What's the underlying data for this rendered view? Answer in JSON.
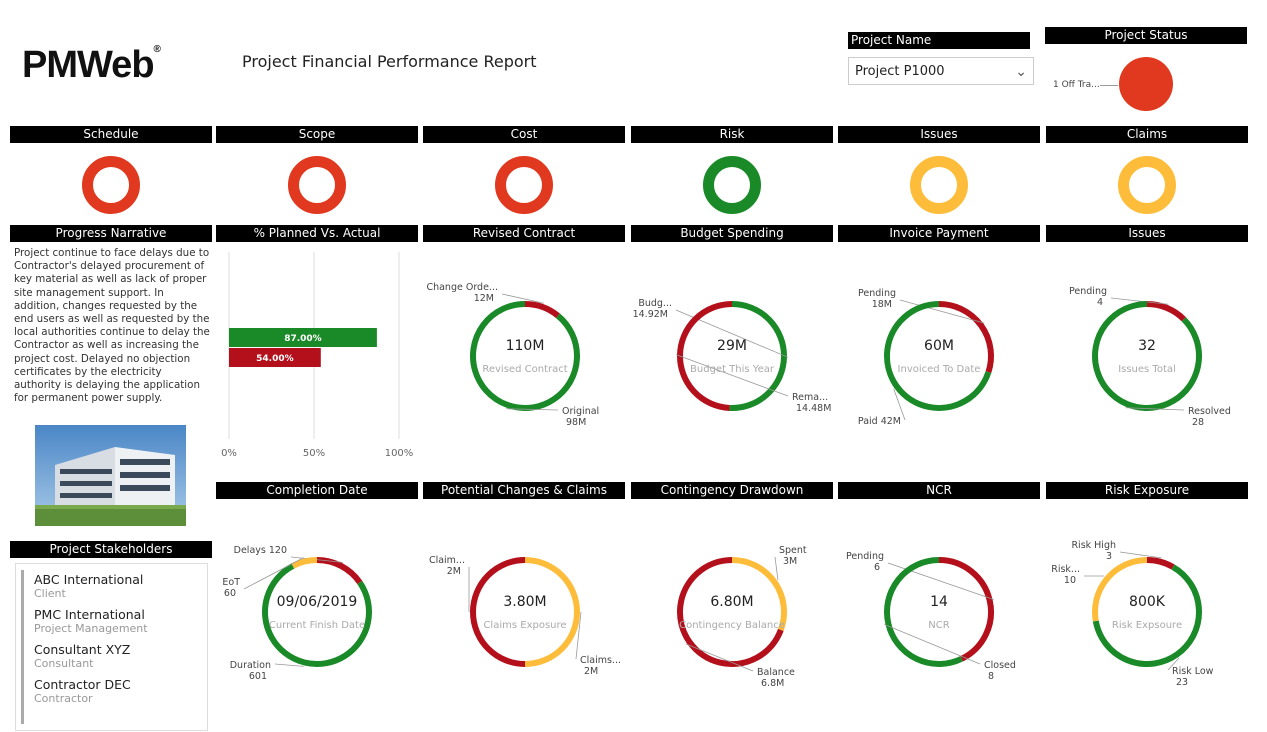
{
  "header": {
    "logo_text": "PMWeb",
    "logo_reg": "®",
    "title": "Project Financial Performance Report",
    "project_name_label": "Project Name",
    "project_name_value": "Project P1000",
    "project_status_label": "Project Status",
    "project_status_item": "1 Off Tra..."
  },
  "colors": {
    "red": "#e0391f",
    "darkred": "#b3101c",
    "green": "#1a8a28",
    "yellow": "#fdbd3b"
  },
  "indicators": [
    {
      "label": "Schedule",
      "status": "red"
    },
    {
      "label": "Scope",
      "status": "red"
    },
    {
      "label": "Cost",
      "status": "red"
    },
    {
      "label": "Risk",
      "status": "green"
    },
    {
      "label": "Issues",
      "status": "yellow"
    },
    {
      "label": "Claims",
      "status": "yellow"
    }
  ],
  "narrative": {
    "label": "Progress Narrative",
    "text": "Project continue to face delays due to Contractor's delayed procurement of key material as well as lack of proper site management support. In addition, changes requested by the end users as well as requested by the local authorities continue to delay the Contractor as well as increasing the project cost. Delayed no objection certificates by the electricity authority is delaying the application for permanent power supply."
  },
  "stakeholders": {
    "label": "Project Stakeholders",
    "items": [
      {
        "name": "ABC International",
        "role": "Client"
      },
      {
        "name": "PMC International",
        "role": "Project Management"
      },
      {
        "name": "Consultant XYZ",
        "role": "Consultant"
      },
      {
        "name": "Contractor DEC",
        "role": "Contractor"
      }
    ]
  },
  "chart_data": [
    {
      "type": "bar",
      "title": "% Planned Vs. Actual",
      "orientation": "horizontal",
      "series": [
        {
          "values": [
            87.0
          ],
          "label": "87.00%",
          "color": "#1a8a28"
        },
        {
          "values": [
            54.0
          ],
          "label": "54.00%",
          "color": "#b3101c"
        }
      ],
      "xlim": [
        0,
        100
      ],
      "xticks": [
        "0%",
        "50%",
        "100%"
      ]
    },
    {
      "type": "pie",
      "variant": "donut",
      "title": "Revised Contract",
      "center_value": "110M",
      "center_label": "Revised Contract",
      "slices": [
        {
          "label": "Change Orde...",
          "value_label": "12M",
          "value": 12,
          "color": "#b3101c"
        },
        {
          "label": "Original",
          "value_label": "98M",
          "value": 98,
          "color": "#1a8a28"
        }
      ]
    },
    {
      "type": "pie",
      "variant": "donut",
      "title": "Budget Spending",
      "center_value": "29M",
      "center_label": "Budget This Year",
      "slices": [
        {
          "label": "Budg...",
          "value_label": "14.92M",
          "value": 14.92,
          "color": "#1a8a28"
        },
        {
          "label": "Rema...",
          "value_label": "14.48M",
          "value": 14.48,
          "color": "#b3101c"
        }
      ]
    },
    {
      "type": "pie",
      "variant": "donut",
      "title": "Invoice Payment",
      "center_value": "60M",
      "center_label": "Invoiced To Date",
      "slices": [
        {
          "label": "Pending",
          "value_label": "18M",
          "value": 18,
          "color": "#b3101c"
        },
        {
          "label": "Paid 42M",
          "value_label": "",
          "value": 42,
          "color": "#1a8a28"
        }
      ]
    },
    {
      "type": "pie",
      "variant": "donut",
      "title": "Issues",
      "center_value": "32",
      "center_label": "Issues Total",
      "slices": [
        {
          "label": "Pending",
          "value_label": "4",
          "value": 4,
          "color": "#b3101c"
        },
        {
          "label": "Resolved",
          "value_label": "28",
          "value": 28,
          "color": "#1a8a28"
        }
      ]
    },
    {
      "type": "pie",
      "variant": "donut",
      "title": "Completion Date",
      "center_value": "09/06/2019",
      "center_label": "Current Finish Date",
      "slices": [
        {
          "label": "Delays 120",
          "value_label": "",
          "value": 120,
          "color": "#b3101c"
        },
        {
          "label": "Duration",
          "value_label": "601",
          "value": 601,
          "color": "#1a8a28"
        },
        {
          "label": "EoT",
          "value_label": "60",
          "value": 60,
          "color": "#fdbd3b"
        }
      ]
    },
    {
      "type": "pie",
      "variant": "donut",
      "title": "Potential Changes & Claims",
      "center_value": "3.80M",
      "center_label": "Claims Exposure",
      "slices": [
        {
          "label": "Claims...",
          "value_label": "2M",
          "value": 2,
          "color": "#fdbd3b"
        },
        {
          "label": "Claim...",
          "value_label": "2M",
          "value": 2,
          "color": "#b3101c"
        }
      ]
    },
    {
      "type": "pie",
      "variant": "donut",
      "title": "Contingency Drawdown",
      "center_value": "6.80M",
      "center_label": "Contingency Balance",
      "slices": [
        {
          "label": "Spent",
          "value_label": "3M",
          "value": 3,
          "color": "#fdbd3b"
        },
        {
          "label": "Balance",
          "value_label": "6.8M",
          "value": 6.8,
          "color": "#b3101c"
        }
      ]
    },
    {
      "type": "pie",
      "variant": "donut",
      "title": "NCR",
      "center_value": "14",
      "center_label": "NCR",
      "slices": [
        {
          "label": "Pending",
          "value_label": "6",
          "value": 6,
          "color": "#b3101c"
        },
        {
          "label": "Closed",
          "value_label": "8",
          "value": 8,
          "color": "#1a8a28"
        }
      ]
    },
    {
      "type": "pie",
      "variant": "donut",
      "title": "Risk Exposure",
      "center_value": "800K",
      "center_label": "Risk Expsoure",
      "slices": [
        {
          "label": "Risk High",
          "value_label": "3",
          "value": 3,
          "color": "#b3101c"
        },
        {
          "label": "Risk Low",
          "value_label": "23",
          "value": 23,
          "color": "#1a8a28"
        },
        {
          "label": "Risk...",
          "value_label": "10",
          "value": 10,
          "color": "#fdbd3b"
        }
      ]
    }
  ]
}
